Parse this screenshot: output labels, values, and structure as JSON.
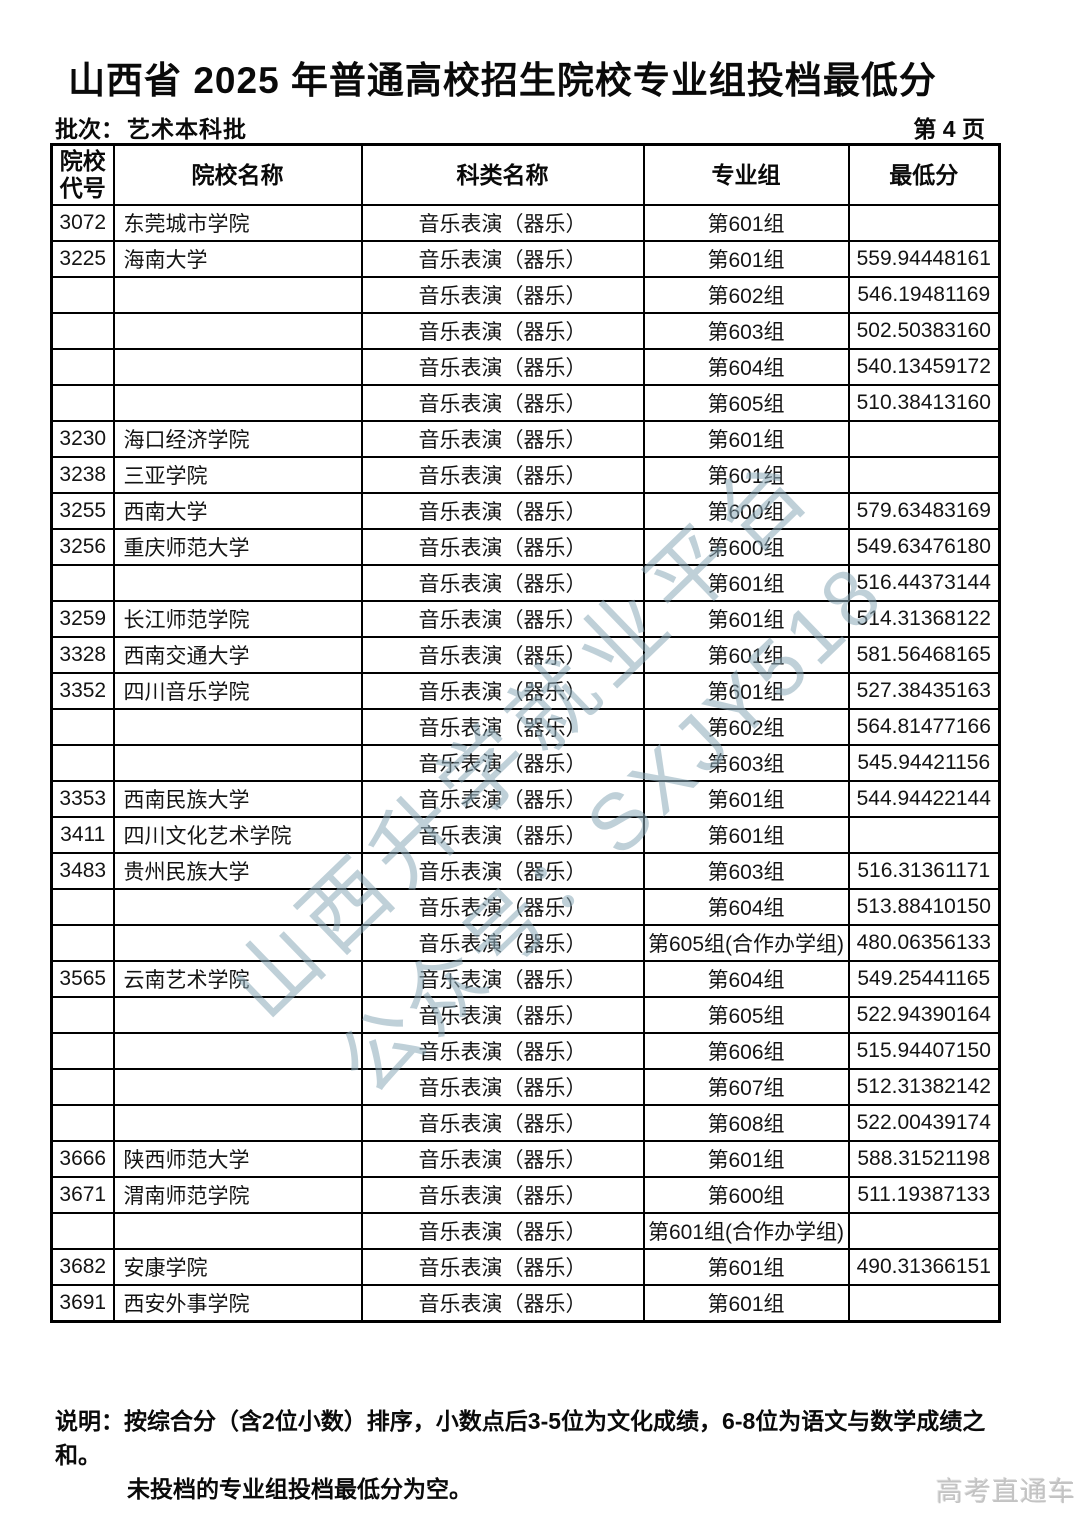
{
  "page": {
    "title": "山西省 2025 年普通高校招生院校专业组投档最低分",
    "batch_label": "批次：",
    "batch_value": "艺术本科批",
    "page_number": "第 4 页"
  },
  "table": {
    "headers": [
      "院校代号",
      "院校名称",
      "科类名称",
      "专业组",
      "最低分"
    ],
    "rows": [
      {
        "code": "3072",
        "name": "东莞城市学院",
        "category": "音乐表演（器乐）",
        "group": "第601组",
        "score": ""
      },
      {
        "code": "3225",
        "name": "海南大学",
        "category": "音乐表演（器乐）",
        "group": "第601组",
        "score": "559.94448161"
      },
      {
        "code": "",
        "name": "",
        "category": "音乐表演（器乐）",
        "group": "第602组",
        "score": "546.19481169"
      },
      {
        "code": "",
        "name": "",
        "category": "音乐表演（器乐）",
        "group": "第603组",
        "score": "502.50383160"
      },
      {
        "code": "",
        "name": "",
        "category": "音乐表演（器乐）",
        "group": "第604组",
        "score": "540.13459172"
      },
      {
        "code": "",
        "name": "",
        "category": "音乐表演（器乐）",
        "group": "第605组",
        "score": "510.38413160"
      },
      {
        "code": "3230",
        "name": "海口经济学院",
        "category": "音乐表演（器乐）",
        "group": "第601组",
        "score": ""
      },
      {
        "code": "3238",
        "name": "三亚学院",
        "category": "音乐表演（器乐）",
        "group": "第601组",
        "score": ""
      },
      {
        "code": "3255",
        "name": "西南大学",
        "category": "音乐表演（器乐）",
        "group": "第600组",
        "score": "579.63483169"
      },
      {
        "code": "3256",
        "name": "重庆师范大学",
        "category": "音乐表演（器乐）",
        "group": "第600组",
        "score": "549.63476180"
      },
      {
        "code": "",
        "name": "",
        "category": "音乐表演（器乐）",
        "group": "第601组",
        "score": "516.44373144"
      },
      {
        "code": "3259",
        "name": "长江师范学院",
        "category": "音乐表演（器乐）",
        "group": "第601组",
        "score": "514.31368122"
      },
      {
        "code": "3328",
        "name": "西南交通大学",
        "category": "音乐表演（器乐）",
        "group": "第601组",
        "score": "581.56468165"
      },
      {
        "code": "3352",
        "name": "四川音乐学院",
        "category": "音乐表演（器乐）",
        "group": "第601组",
        "score": "527.38435163"
      },
      {
        "code": "",
        "name": "",
        "category": "音乐表演（器乐）",
        "group": "第602组",
        "score": "564.81477166"
      },
      {
        "code": "",
        "name": "",
        "category": "音乐表演（器乐）",
        "group": "第603组",
        "score": "545.94421156"
      },
      {
        "code": "3353",
        "name": "西南民族大学",
        "category": "音乐表演（器乐）",
        "group": "第601组",
        "score": "544.94422144"
      },
      {
        "code": "3411",
        "name": "四川文化艺术学院",
        "category": "音乐表演（器乐）",
        "group": "第601组",
        "score": ""
      },
      {
        "code": "3483",
        "name": "贵州民族大学",
        "category": "音乐表演（器乐）",
        "group": "第603组",
        "score": "516.31361171"
      },
      {
        "code": "",
        "name": "",
        "category": "音乐表演（器乐）",
        "group": "第604组",
        "score": "513.88410150"
      },
      {
        "code": "",
        "name": "",
        "category": "音乐表演（器乐）",
        "group": "第605组(合作办学组)",
        "score": "480.06356133"
      },
      {
        "code": "3565",
        "name": "云南艺术学院",
        "category": "音乐表演（器乐）",
        "group": "第604组",
        "score": "549.25441165"
      },
      {
        "code": "",
        "name": "",
        "category": "音乐表演（器乐）",
        "group": "第605组",
        "score": "522.94390164"
      },
      {
        "code": "",
        "name": "",
        "category": "音乐表演（器乐）",
        "group": "第606组",
        "score": "515.94407150"
      },
      {
        "code": "",
        "name": "",
        "category": "音乐表演（器乐）",
        "group": "第607组",
        "score": "512.31382142"
      },
      {
        "code": "",
        "name": "",
        "category": "音乐表演（器乐）",
        "group": "第608组",
        "score": "522.00439174"
      },
      {
        "code": "3666",
        "name": "陕西师范大学",
        "category": "音乐表演（器乐）",
        "group": "第601组",
        "score": "588.31521198"
      },
      {
        "code": "3671",
        "name": "渭南师范学院",
        "category": "音乐表演（器乐）",
        "group": "第600组",
        "score": "511.19387133"
      },
      {
        "code": "",
        "name": "",
        "category": "音乐表演（器乐）",
        "group": "第601组(合作办学组)",
        "score": ""
      },
      {
        "code": "3682",
        "name": "安康学院",
        "category": "音乐表演（器乐）",
        "group": "第601组",
        "score": "490.31366151"
      },
      {
        "code": "3691",
        "name": "西安外事学院",
        "category": "音乐表演（器乐）",
        "group": "第601组",
        "score": ""
      }
    ]
  },
  "watermark": {
    "line1": "山西升学就业平台",
    "line2": "公众号：SXJY518",
    "color": "#8aaab8"
  },
  "footer": {
    "note_label": "说明：",
    "note_line1": "按综合分（含2位小数）排序，小数点后3-5位为文化成绩，6-8位为语文与数学成绩之和。",
    "note_line2": "未投档的专业组投档最低分为空。",
    "brand": "高考直通车"
  }
}
